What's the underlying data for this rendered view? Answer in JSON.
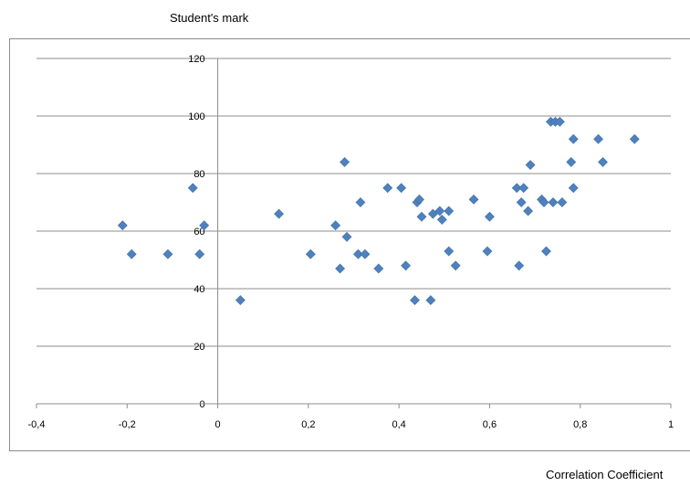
{
  "chart_data": {
    "type": "scatter",
    "title": "",
    "ylabel": "Student's mark",
    "xlabel": "Correlation Coefficient",
    "xlim": [
      -0.4,
      1
    ],
    "ylim": [
      0,
      120
    ],
    "xticks": [
      "-0,4",
      "-0,2",
      "0",
      "0,2",
      "0,4",
      "0,6",
      "0,8",
      "1"
    ],
    "yticks": [
      "0",
      "20",
      "40",
      "60",
      "80",
      "100",
      "120"
    ],
    "grid": "horizontal",
    "marker_color": "#4f81bd",
    "points": [
      {
        "x": -0.21,
        "y": 62
      },
      {
        "x": -0.19,
        "y": 52
      },
      {
        "x": -0.11,
        "y": 52
      },
      {
        "x": -0.055,
        "y": 75
      },
      {
        "x": -0.04,
        "y": 52
      },
      {
        "x": -0.03,
        "y": 62
      },
      {
        "x": 0.05,
        "y": 36
      },
      {
        "x": 0.135,
        "y": 66
      },
      {
        "x": 0.205,
        "y": 52
      },
      {
        "x": 0.26,
        "y": 62
      },
      {
        "x": 0.27,
        "y": 47
      },
      {
        "x": 0.28,
        "y": 84
      },
      {
        "x": 0.285,
        "y": 58
      },
      {
        "x": 0.31,
        "y": 52
      },
      {
        "x": 0.315,
        "y": 70
      },
      {
        "x": 0.325,
        "y": 52
      },
      {
        "x": 0.355,
        "y": 47
      },
      {
        "x": 0.375,
        "y": 75
      },
      {
        "x": 0.405,
        "y": 75
      },
      {
        "x": 0.415,
        "y": 48
      },
      {
        "x": 0.435,
        "y": 36
      },
      {
        "x": 0.44,
        "y": 70
      },
      {
        "x": 0.445,
        "y": 71
      },
      {
        "x": 0.45,
        "y": 65
      },
      {
        "x": 0.47,
        "y": 36
      },
      {
        "x": 0.475,
        "y": 66
      },
      {
        "x": 0.49,
        "y": 67
      },
      {
        "x": 0.495,
        "y": 64
      },
      {
        "x": 0.51,
        "y": 67
      },
      {
        "x": 0.51,
        "y": 53
      },
      {
        "x": 0.525,
        "y": 48
      },
      {
        "x": 0.565,
        "y": 71
      },
      {
        "x": 0.595,
        "y": 53
      },
      {
        "x": 0.6,
        "y": 65
      },
      {
        "x": 0.66,
        "y": 75
      },
      {
        "x": 0.665,
        "y": 48
      },
      {
        "x": 0.67,
        "y": 70
      },
      {
        "x": 0.675,
        "y": 75
      },
      {
        "x": 0.685,
        "y": 67
      },
      {
        "x": 0.69,
        "y": 83
      },
      {
        "x": 0.715,
        "y": 71
      },
      {
        "x": 0.72,
        "y": 70
      },
      {
        "x": 0.725,
        "y": 53
      },
      {
        "x": 0.735,
        "y": 98
      },
      {
        "x": 0.74,
        "y": 70
      },
      {
        "x": 0.745,
        "y": 98
      },
      {
        "x": 0.755,
        "y": 98
      },
      {
        "x": 0.76,
        "y": 70
      },
      {
        "x": 0.78,
        "y": 84
      },
      {
        "x": 0.785,
        "y": 92
      },
      {
        "x": 0.785,
        "y": 75
      },
      {
        "x": 0.84,
        "y": 92
      },
      {
        "x": 0.85,
        "y": 84
      },
      {
        "x": 0.92,
        "y": 92
      }
    ]
  }
}
